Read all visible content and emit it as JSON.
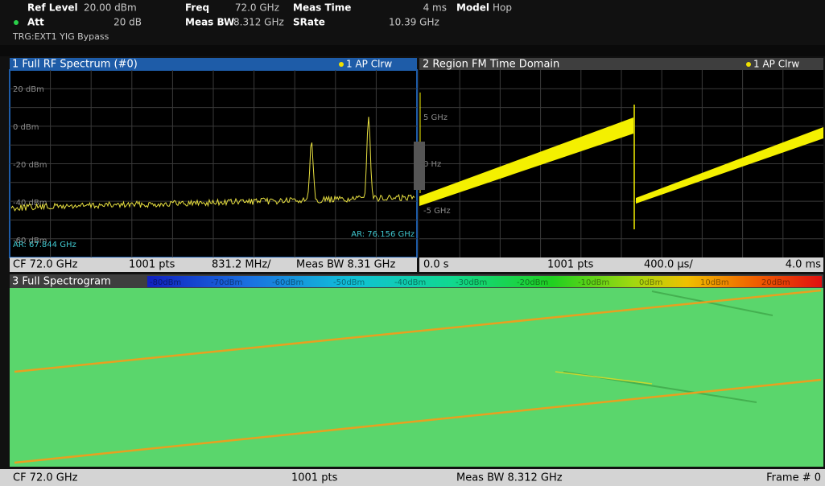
{
  "header": {
    "ref_level": {
      "label": "Ref Level",
      "value": "20.00 dBm"
    },
    "att": {
      "label": "Att",
      "value": "20 dB"
    },
    "freq": {
      "label": "Freq",
      "value": "72.0 GHz"
    },
    "meas_bw": {
      "label": "Meas BW",
      "value": "8.312 GHz"
    },
    "meas_time": {
      "label": "Meas Time",
      "value": "4 ms"
    },
    "srate": {
      "label": "SRate",
      "value": "10.39 GHz"
    },
    "model": {
      "label": "Model",
      "value": "Hop"
    },
    "trigger": "TRG:EXT1 YIG Bypass"
  },
  "windows": [
    {
      "title": "1 Full RF Spectrum (#0)",
      "trace": "1 AP Clrw",
      "y_labels": [
        "20 dBm",
        "0 dBm",
        "-20 dBm",
        "-40 dBm",
        "-60 dBm"
      ],
      "markers": [
        "AR: 67.844 GHz",
        "AR: 76.156 GHz"
      ],
      "footer": [
        "CF 72.0 GHz",
        "1001 pts",
        "831.2 MHz/",
        "Meas BW 8.31 GHz"
      ]
    },
    {
      "title": "2 Region FM Time Domain",
      "trace": "1 AP Clrw",
      "y_labels": [
        "5 GHz",
        "0 Hz",
        "-5 GHz"
      ],
      "footer": [
        "0.0 s",
        "1001 pts",
        "400.0 µs/",
        "4.0 ms"
      ]
    },
    {
      "title": "3 Full Spectrogram",
      "scale_labels": [
        "-80dBm",
        "-70dBm",
        "-60dBm",
        "-50dBm",
        "-40dBm",
        "-30dBm",
        "-20dBm",
        "-10dBm",
        "0dBm",
        "10dBm",
        "20dBm"
      ],
      "footer": [
        "CF 72.0 GHz",
        "1001 pts",
        "Meas BW 8.312 GHz",
        "Frame # 0"
      ]
    }
  ]
}
